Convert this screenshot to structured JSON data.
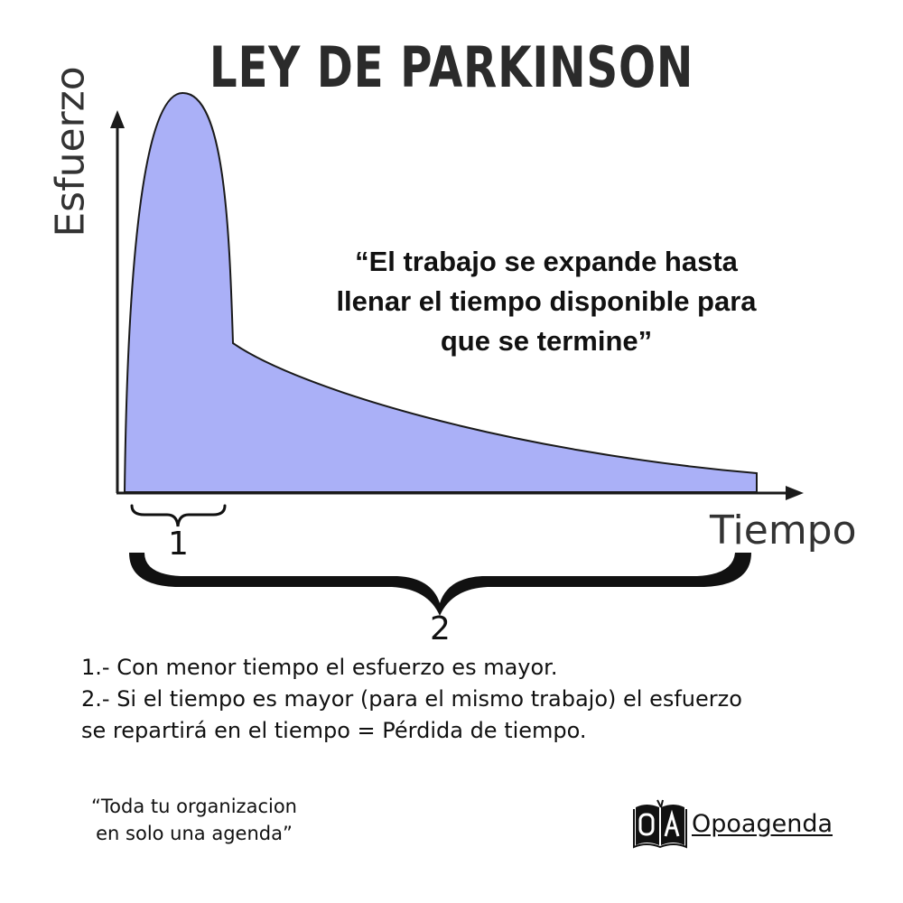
{
  "title": "LEY DE PARKINSON",
  "quote": {
    "lines": [
      "“El trabajo se expande  hasta",
      "llenar el tiempo disponible para",
      "que se termine”"
    ]
  },
  "axes": {
    "y_label": "Esfuerzo",
    "x_label": "Tiempo"
  },
  "braces": {
    "short_label": "1",
    "long_label": "2"
  },
  "notes": [
    "1.- Con menor tiempo el esfuerzo es mayor.",
    "2.- Si el tiempo es mayor (para el mismo trabajo) el esfuerzo",
    "se repartirá en el tiempo = Pérdida de tiempo."
  ],
  "slogan": {
    "lines": [
      "“Toda tu organizacion",
      "en solo una agenda”"
    ]
  },
  "brand": {
    "name": "Opoagenda",
    "logo_icon": "open-book-logo-icon"
  },
  "colors": {
    "curve_fill": "#aab0f7",
    "curve_stroke": "#1a1a1a",
    "axis": "#1a1a1a",
    "text": "#111111"
  }
}
